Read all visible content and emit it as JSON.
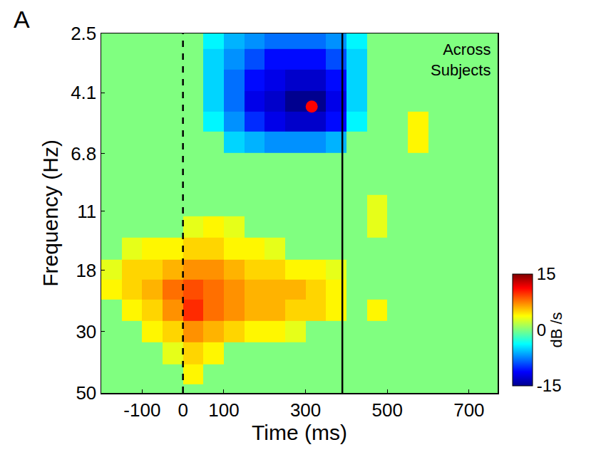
{
  "chart_data": {
    "type": "heatmap",
    "panel": "A",
    "annotation": [
      "Across",
      "Subjects"
    ],
    "x_label": "Time (ms)",
    "y_label": "Frequency (Hz)",
    "colorbar_label": "dB /s",
    "log": "y",
    "grid": false,
    "x": [
      -175,
      -125,
      -75,
      -25,
      25,
      75,
      125,
      175,
      225,
      275,
      325,
      375,
      425,
      475,
      525,
      575,
      625,
      675,
      725,
      775
    ],
    "y": [
      2.6,
      3.1,
      3.7,
      4.4,
      5.2,
      6.2,
      7.4,
      8.8,
      10.5,
      12.5,
      15,
      18,
      21,
      25,
      30,
      36,
      43,
      50
    ],
    "z": [
      [
        0,
        0,
        0,
        0,
        0,
        -4,
        -6,
        -7,
        -8,
        -8,
        -8,
        -7,
        -4,
        0,
        0,
        0,
        0,
        0,
        0,
        0
      ],
      [
        0,
        0,
        0,
        0,
        0,
        -5,
        -7,
        -9,
        -11,
        -11,
        -11,
        -9,
        -5,
        0,
        0,
        0,
        0,
        0,
        0,
        0
      ],
      [
        0,
        0,
        0,
        0,
        0,
        -5,
        -8,
        -11,
        -12,
        -13,
        -13,
        -11,
        -5,
        0,
        0,
        0,
        0,
        0,
        0,
        0
      ],
      [
        0,
        0,
        0,
        0,
        0,
        -5,
        -8,
        -12,
        -13,
        -15,
        -15,
        -12,
        -5,
        0,
        0,
        0,
        0,
        0,
        0,
        0
      ],
      [
        0,
        0,
        0,
        0,
        0,
        -4,
        -7,
        -10,
        -12,
        -13,
        -13,
        -11,
        -4,
        0,
        0,
        4,
        0,
        0,
        0,
        0
      ],
      [
        0,
        0,
        0,
        0,
        0,
        0,
        -5,
        -6,
        -7,
        -7,
        -7,
        -6,
        0,
        0,
        0,
        4,
        0,
        0,
        0,
        0
      ],
      [
        0,
        0,
        0,
        0,
        0,
        0,
        0,
        0,
        0,
        0,
        0,
        0,
        0,
        0,
        0,
        0,
        0,
        0,
        0,
        0
      ],
      [
        0,
        0,
        0,
        0,
        0,
        0,
        0,
        0,
        0,
        0,
        0,
        0,
        0,
        0,
        0,
        0,
        0,
        0,
        0,
        0
      ],
      [
        0,
        0,
        0,
        0,
        0,
        0,
        0,
        0,
        0,
        0,
        0,
        0,
        0,
        3,
        0,
        0,
        0,
        0,
        0,
        0
      ],
      [
        0,
        0,
        0,
        0,
        3,
        4,
        3,
        0,
        0,
        0,
        0,
        0,
        0,
        3,
        0,
        0,
        0,
        0,
        0,
        0
      ],
      [
        0,
        3,
        4,
        4,
        5,
        5,
        4,
        4,
        3,
        0,
        0,
        0,
        0,
        0,
        0,
        0,
        0,
        0,
        0,
        0
      ],
      [
        3,
        5,
        5,
        6,
        7,
        7,
        6,
        5,
        5,
        4,
        4,
        3,
        0,
        0,
        0,
        0,
        0,
        0,
        0,
        0
      ],
      [
        4,
        5,
        6,
        8,
        9,
        8,
        7,
        6,
        6,
        6,
        5,
        4,
        0,
        0,
        0,
        0,
        0,
        0,
        0,
        0
      ],
      [
        0,
        4,
        5,
        7,
        10,
        8,
        7,
        6,
        6,
        5,
        5,
        4,
        0,
        4,
        0,
        0,
        0,
        0,
        0,
        0
      ],
      [
        0,
        0,
        4,
        5,
        7,
        6,
        5,
        4,
        4,
        3,
        0,
        0,
        0,
        0,
        0,
        0,
        0,
        0,
        0,
        0
      ],
      [
        0,
        0,
        0,
        3,
        5,
        4,
        0,
        0,
        0,
        0,
        0,
        0,
        0,
        0,
        0,
        0,
        0,
        0,
        0,
        0
      ],
      [
        0,
        0,
        0,
        0,
        4,
        0,
        0,
        0,
        0,
        0,
        0,
        0,
        0,
        0,
        0,
        0,
        0,
        0,
        0,
        0
      ],
      [
        0,
        0,
        0,
        0,
        0,
        0,
        0,
        0,
        0,
        0,
        0,
        0,
        0,
        0,
        0,
        0,
        0,
        0,
        0,
        0
      ]
    ],
    "zlim": [
      -15,
      15
    ],
    "zticks": [
      -15,
      0,
      15
    ],
    "xlim": [
      -200,
      770
    ],
    "xticks": [
      -100,
      0,
      100,
      300,
      500,
      700
    ],
    "ylim": [
      50,
      2.5
    ],
    "yticks": [
      2.5,
      4.1,
      6.8,
      11,
      18,
      30,
      50
    ],
    "vlines": [
      {
        "x": 0,
        "line_style": "dashed"
      },
      {
        "x": 390,
        "line_style": "solid"
      }
    ],
    "points": [
      {
        "x": 315,
        "y": 4.6,
        "color": "red"
      }
    ]
  }
}
